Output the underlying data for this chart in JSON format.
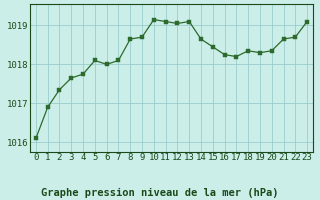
{
  "x": [
    0,
    1,
    2,
    3,
    4,
    5,
    6,
    7,
    8,
    9,
    10,
    11,
    12,
    13,
    14,
    15,
    16,
    17,
    18,
    19,
    20,
    21,
    22,
    23
  ],
  "y": [
    1016.1,
    1016.9,
    1017.35,
    1017.65,
    1017.75,
    1018.1,
    1018.0,
    1018.1,
    1018.65,
    1018.7,
    1019.15,
    1019.1,
    1019.05,
    1019.1,
    1018.65,
    1018.45,
    1018.25,
    1018.2,
    1018.35,
    1018.3,
    1018.35,
    1018.65,
    1018.7,
    1019.1
  ],
  "line_color": "#2d6a2d",
  "marker_color": "#2d6a2d",
  "bg_color": "#cceee8",
  "grid_color": "#99cccc",
  "xlabel": "Graphe pression niveau de la mer (hPa)",
  "xlabel_color": "#1a4a1a",
  "tick_color": "#1a4a1a",
  "ylim": [
    1015.75,
    1019.55
  ],
  "xlim": [
    -0.5,
    23.5
  ],
  "yticks": [
    1016,
    1017,
    1018,
    1019
  ],
  "xticks": [
    0,
    1,
    2,
    3,
    4,
    5,
    6,
    7,
    8,
    9,
    10,
    11,
    12,
    13,
    14,
    15,
    16,
    17,
    18,
    19,
    20,
    21,
    22,
    23
  ],
  "figsize": [
    3.2,
    2.0
  ],
  "dpi": 100,
  "font_size": 6.5,
  "xlabel_fontsize": 7.5
}
